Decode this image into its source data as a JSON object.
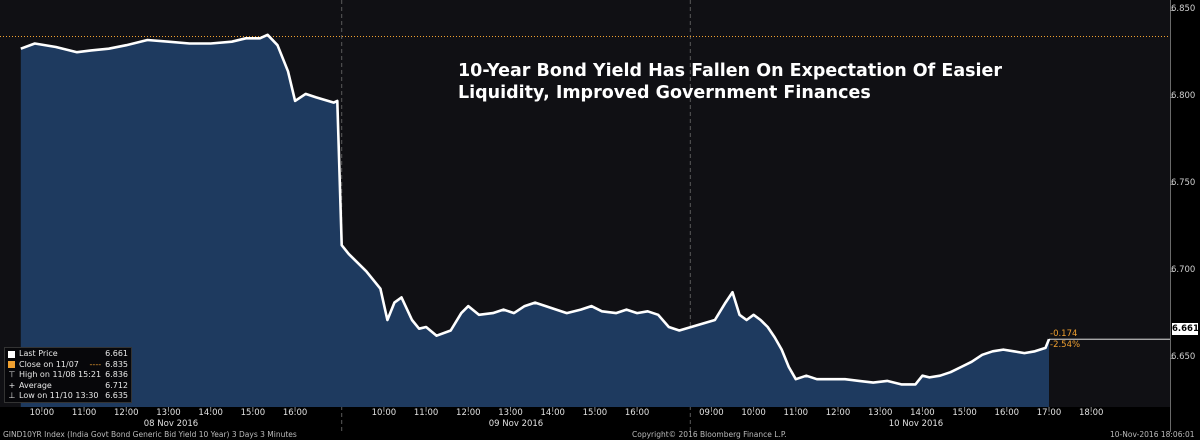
{
  "chart_data": {
    "type": "area",
    "title_lines": [
      "10-Year Bond Yield Has Fallen On Expectation Of Easier",
      "Liquidity, Improved Government Finances"
    ],
    "y_ticks": [
      "6.850",
      "6.800",
      "6.750",
      "6.700",
      "6.650"
    ],
    "ylim": [
      6.622,
      6.856
    ],
    "grid": false,
    "legend_position": "bottom-left",
    "legend": [
      {
        "label": "Last Price",
        "value": "6.661",
        "marker": "filled-square"
      },
      {
        "label": "Close on 11/07",
        "value": "6.835",
        "marker": "dashed-line"
      },
      {
        "label": "High on 11/08 15:21",
        "value": "6.836",
        "marker": "high-marker"
      },
      {
        "label": "Average",
        "value": "6.712",
        "marker": "average-marker"
      },
      {
        "label": "Low on 11/10 13:30",
        "value": "6.635",
        "marker": "low-marker"
      }
    ],
    "last_price": "6.661",
    "change_net": "-0.174",
    "change_pct": "-2.54%",
    "close_reference": 6.835,
    "days": [
      {
        "label": "08 Nov 2016",
        "hours": [
          "10:00",
          "11:00",
          "12:00",
          "13:00",
          "14:00",
          "15:00",
          "16:00"
        ]
      },
      {
        "label": "09 Nov 2016",
        "hours": [
          "10:00",
          "11:00",
          "12:00",
          "13:00",
          "14:00",
          "15:00",
          "16:00"
        ]
      },
      {
        "label": "10 Nov 2016",
        "hours": [
          "09:00",
          "10:00",
          "11:00",
          "12:00",
          "13:00",
          "14:00",
          "15:00",
          "16:00",
          "17:00",
          "18:00"
        ]
      }
    ],
    "series": [
      {
        "x": [
          "08 Nov 09:30",
          "08 Nov 09:50",
          "08 Nov 10:20",
          "08 Nov 10:50",
          "08 Nov 11:10",
          "08 Nov 11:35",
          "08 Nov 12:00",
          "08 Nov 12:30",
          "08 Nov 13:00",
          "08 Nov 13:30",
          "08 Nov 14:00",
          "08 Nov 14:30",
          "08 Nov 14:50",
          "08 Nov 15:10",
          "08 Nov 15:21",
          "08 Nov 15:35",
          "08 Nov 15:50",
          "08 Nov 16:00",
          "08 Nov 16:15",
          "08 Nov 16:30",
          "08 Nov 16:55",
          "08 Nov 17:00",
          "09 Nov 09:00",
          "09 Nov 09:10",
          "09 Nov 09:35",
          "09 Nov 09:55",
          "09 Nov 10:05",
          "09 Nov 10:15",
          "09 Nov 10:25",
          "09 Nov 10:40",
          "09 Nov 10:50",
          "09 Nov 11:00",
          "09 Nov 11:15",
          "09 Nov 11:35",
          "09 Nov 11:50",
          "09 Nov 12:00",
          "09 Nov 12:15",
          "09 Nov 12:35",
          "09 Nov 12:50",
          "09 Nov 13:05",
          "09 Nov 13:20",
          "09 Nov 13:35",
          "09 Nov 13:50",
          "09 Nov 14:05",
          "09 Nov 14:20",
          "09 Nov 14:40",
          "09 Nov 14:55",
          "09 Nov 15:10",
          "09 Nov 15:30",
          "09 Nov 15:45",
          "09 Nov 16:00",
          "09 Nov 16:15",
          "09 Nov 16:30",
          "09 Nov 16:45",
          "09 Nov 17:00",
          "10 Nov 09:05",
          "10 Nov 09:20",
          "10 Nov 09:30",
          "10 Nov 09:40",
          "10 Nov 09:50",
          "10 Nov 10:00",
          "10 Nov 10:10",
          "10 Nov 10:20",
          "10 Nov 10:30",
          "10 Nov 10:40",
          "10 Nov 10:50",
          "10 Nov 11:00",
          "10 Nov 11:15",
          "10 Nov 11:30",
          "10 Nov 11:50",
          "10 Nov 12:10",
          "10 Nov 12:30",
          "10 Nov 12:50",
          "10 Nov 13:10",
          "10 Nov 13:30",
          "10 Nov 13:50",
          "10 Nov 14:00",
          "10 Nov 14:10",
          "10 Nov 14:25",
          "10 Nov 14:40",
          "10 Nov 14:55",
          "10 Nov 15:10",
          "10 Nov 15:25",
          "10 Nov 15:40",
          "10 Nov 15:55",
          "10 Nov 16:10",
          "10 Nov 16:25",
          "10 Nov 16:40",
          "10 Nov 16:55",
          "10 Nov 17:00"
        ],
        "values": [
          6.828,
          6.831,
          6.829,
          6.826,
          6.827,
          6.828,
          6.83,
          6.833,
          6.832,
          6.831,
          6.831,
          6.832,
          6.834,
          6.834,
          6.836,
          6.83,
          6.815,
          6.798,
          6.802,
          6.8,
          6.797,
          6.798,
          6.715,
          6.71,
          6.7,
          6.69,
          6.672,
          6.682,
          6.685,
          6.672,
          6.667,
          6.668,
          6.663,
          6.666,
          6.676,
          6.68,
          6.675,
          6.676,
          6.678,
          6.676,
          6.68,
          6.682,
          6.68,
          6.678,
          6.676,
          6.678,
          6.68,
          6.677,
          6.676,
          6.678,
          6.676,
          6.677,
          6.675,
          6.668,
          6.666,
          6.672,
          6.682,
          6.688,
          6.675,
          6.672,
          6.675,
          6.672,
          6.668,
          6.662,
          6.655,
          6.645,
          6.638,
          6.64,
          6.638,
          6.638,
          6.638,
          6.637,
          6.636,
          6.637,
          6.635,
          6.635,
          6.64,
          6.639,
          6.64,
          6.642,
          6.645,
          6.648,
          6.652,
          6.654,
          6.655,
          6.654,
          6.653,
          6.654,
          6.656,
          6.661
        ]
      }
    ],
    "colors": {
      "line": "#ffffff",
      "fill": "#1e3a5f",
      "reference": "#f0a030",
      "divider": "#5a5a5a"
    }
  },
  "footer": {
    "left": "GIND10YR Index (India Govt Bond Generic Bid Yield 10 Year) 3 Days 3 Minutes",
    "center": "Copyright© 2016 Bloomberg Finance L.P.",
    "right": "10-Nov-2016 18:06:01"
  }
}
